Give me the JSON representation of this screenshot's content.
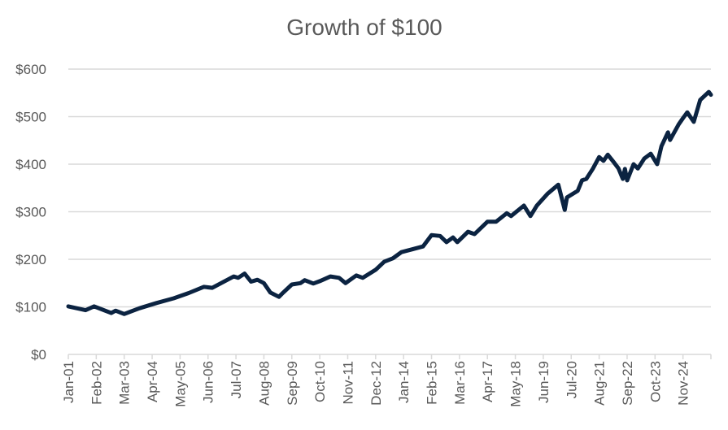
{
  "chart_data": {
    "type": "line",
    "title": "Growth of $100",
    "xlabel": "",
    "ylabel": "",
    "ylim": [
      0,
      600
    ],
    "y_ticks": [
      0,
      100,
      200,
      300,
      400,
      500,
      600
    ],
    "y_tick_labels": [
      "$0",
      "$100",
      "$200",
      "$300",
      "$400",
      "$500",
      "$600"
    ],
    "x_range_months": [
      0,
      299
    ],
    "x_tick_step_months": 13,
    "x_tick_labels": [
      "Jan-01",
      "Feb-02",
      "Mar-03",
      "Apr-04",
      "May-05",
      "Jun-06",
      "Jul-07",
      "Aug-08",
      "Sep-09",
      "Oct-10",
      "Nov-11",
      "Dec-12",
      "Jan-14",
      "Feb-15",
      "Mar-16",
      "Apr-17",
      "May-18",
      "Jun-19",
      "Jul-20",
      "Aug-21",
      "Sep-22",
      "Oct-23",
      "Nov-24"
    ],
    "grid": true,
    "legend": "none",
    "series_color": "#0b2341",
    "series": [
      {
        "name": "Growth of $100",
        "x_unit": "months since Jan-01",
        "points": [
          [
            0,
            101
          ],
          [
            8,
            93
          ],
          [
            12,
            101
          ],
          [
            20,
            87
          ],
          [
            22,
            92
          ],
          [
            26,
            85
          ],
          [
            33,
            97
          ],
          [
            41,
            108
          ],
          [
            49,
            118
          ],
          [
            56,
            129
          ],
          [
            63,
            142
          ],
          [
            67,
            140
          ],
          [
            77,
            164
          ],
          [
            79,
            161
          ],
          [
            82,
            170
          ],
          [
            85,
            153
          ],
          [
            88,
            157
          ],
          [
            91,
            150
          ],
          [
            94,
            130
          ],
          [
            98,
            121
          ],
          [
            100,
            130
          ],
          [
            104,
            147
          ],
          [
            108,
            150
          ],
          [
            110,
            156
          ],
          [
            114,
            149
          ],
          [
            117,
            154
          ],
          [
            122,
            164
          ],
          [
            126,
            161
          ],
          [
            129,
            150
          ],
          [
            134,
            166
          ],
          [
            137,
            161
          ],
          [
            143,
            178
          ],
          [
            147,
            195
          ],
          [
            151,
            202
          ],
          [
            155,
            215
          ],
          [
            165,
            227
          ],
          [
            169,
            251
          ],
          [
            173,
            249
          ],
          [
            176,
            236
          ],
          [
            179,
            246
          ],
          [
            181,
            236
          ],
          [
            186,
            258
          ],
          [
            189,
            253
          ],
          [
            195,
            279
          ],
          [
            199,
            279
          ],
          [
            204,
            297
          ],
          [
            206,
            291
          ],
          [
            212,
            313
          ],
          [
            215,
            291
          ],
          [
            218,
            313
          ],
          [
            223,
            338
          ],
          [
            228,
            357
          ],
          [
            231,
            304
          ],
          [
            232,
            330
          ],
          [
            237,
            344
          ],
          [
            239,
            366
          ],
          [
            241,
            369
          ],
          [
            244,
            390
          ],
          [
            247,
            415
          ],
          [
            249,
            407
          ],
          [
            251,
            420
          ],
          [
            254,
            403
          ],
          [
            256,
            391
          ],
          [
            258,
            369
          ],
          [
            259,
            390
          ],
          [
            260,
            366
          ],
          [
            263,
            400
          ],
          [
            265,
            391
          ],
          [
            268,
            412
          ],
          [
            271,
            422
          ],
          [
            274,
            400
          ],
          [
            276,
            438
          ],
          [
            279,
            467
          ],
          [
            280,
            451
          ],
          [
            284,
            484
          ],
          [
            286,
            497
          ],
          [
            288,
            509
          ],
          [
            291,
            489
          ],
          [
            294,
            535
          ],
          [
            298,
            552
          ],
          [
            299,
            546
          ]
        ]
      }
    ]
  }
}
